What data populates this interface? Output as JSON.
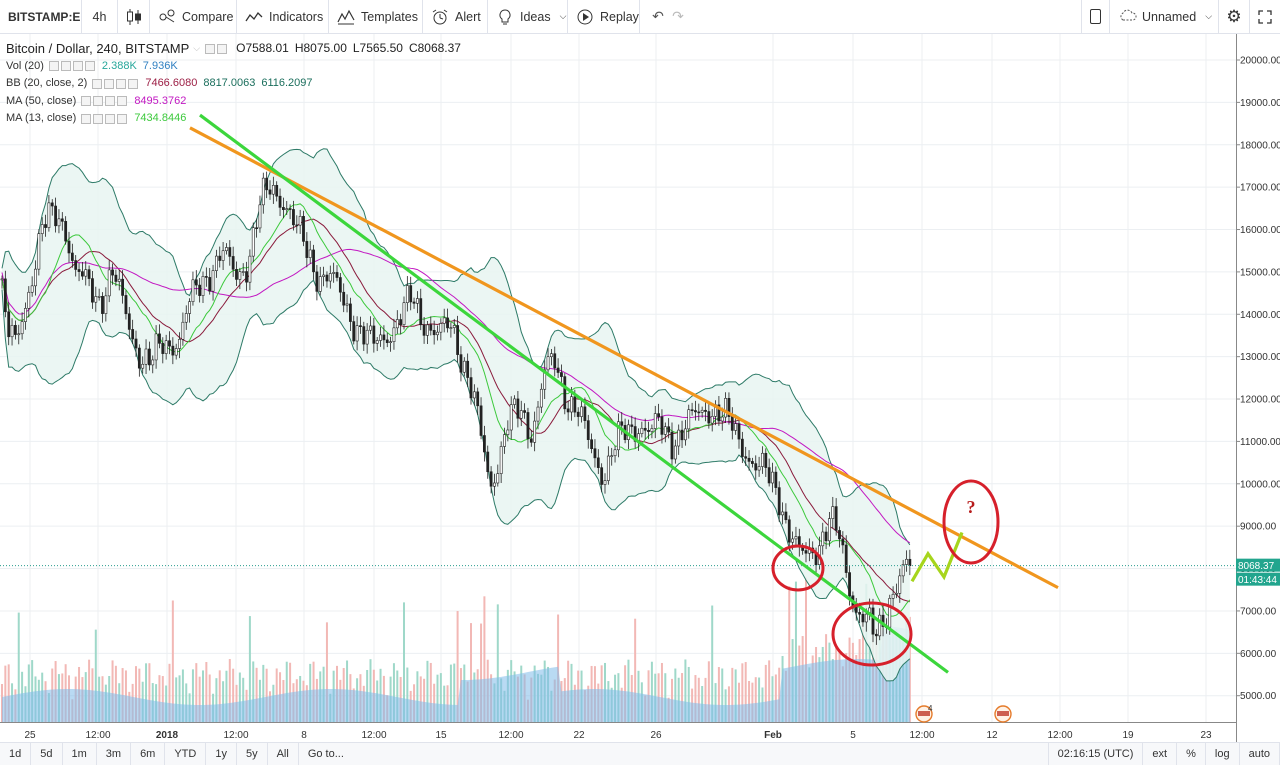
{
  "toolbar": {
    "symbol": "BITSTAMP:E",
    "interval": "4h",
    "compare": "Compare",
    "indicators": "Indicators",
    "templates": "Templates",
    "alert": "Alert",
    "ideas": "Ideas",
    "replay": "Replay",
    "layout_name": "Unnamed"
  },
  "legend": {
    "title": "Bitcoin / Dollar, 240, BITSTAMP",
    "open": "O7588.01",
    "high": "H8075.00",
    "low": "L7565.50",
    "close": "C8068.37",
    "indicators": [
      {
        "label": "Vol (20)",
        "values": [
          "2.388K",
          "7.936K"
        ],
        "colors": [
          "#26a69a",
          "#2f7fc1"
        ]
      },
      {
        "label": "BB (20, close, 2)",
        "values": [
          "7466.6080",
          "8817.0063",
          "6116.2097"
        ],
        "colors": [
          "#9c1f45",
          "#1a6e5c",
          "#1a6e5c"
        ]
      },
      {
        "label": "MA (50, close)",
        "values": [
          "8495.3762"
        ],
        "colors": [
          "#c218c2"
        ]
      },
      {
        "label": "MA (13, close)",
        "values": [
          "7434.8446"
        ],
        "colors": [
          "#3cc93c"
        ]
      }
    ]
  },
  "price_axis": {
    "labels": [
      "20000.00",
      "19000.00",
      "18000.00",
      "17000.00",
      "16000.00",
      "15000.00",
      "14000.00",
      "13000.00",
      "12000.00",
      "11000.00",
      "10000.00",
      "9000.00",
      "8000.00",
      "7000.00",
      "6000.00",
      "5000.00"
    ],
    "last_price": "8068.37",
    "countdown": "01:43:44"
  },
  "time_axis": {
    "labels": [
      "25",
      "12:00",
      "2018",
      "12:00",
      "8",
      "12:00",
      "15",
      "12:00",
      "22",
      "26",
      "Feb",
      "5",
      "12:00",
      "12",
      "12:00",
      "19",
      "23"
    ],
    "clock": "02:16:15 (UTC)"
  },
  "annotations": {
    "question": "?",
    "event_badge": "4"
  },
  "bottombar": {
    "ranges": [
      "1d",
      "5d",
      "1m",
      "3m",
      "6m",
      "YTD",
      "1y",
      "5y",
      "All"
    ],
    "goto": "Go to...",
    "toggles": [
      "ext",
      "%",
      "log",
      "auto"
    ]
  },
  "chart_data": {
    "type": "candlestick",
    "symbol": "Bitcoin / Dollar, 240, BITSTAMP",
    "ylim": [
      4600,
      20600
    ],
    "x_ticks": [
      "25",
      "12:00",
      "2018",
      "12:00",
      "8",
      "12:00",
      "15",
      "12:00",
      "22",
      "26",
      "Feb",
      "5",
      "12:00",
      "12",
      "12:00",
      "19",
      "23"
    ],
    "path": [
      [
        0,
        15000
      ],
      [
        8,
        13500
      ],
      [
        16,
        13200
      ],
      [
        30,
        14800
      ],
      [
        42,
        16000
      ],
      [
        55,
        16300
      ],
      [
        65,
        16200
      ],
      [
        75,
        15000
      ],
      [
        88,
        14600
      ],
      [
        100,
        14400
      ],
      [
        112,
        15000
      ],
      [
        125,
        14000
      ],
      [
        138,
        13200
      ],
      [
        150,
        12800
      ],
      [
        165,
        13300
      ],
      [
        180,
        13500
      ],
      [
        190,
        14200
      ],
      [
        200,
        14700
      ],
      [
        210,
        15100
      ],
      [
        222,
        15400
      ],
      [
        235,
        14900
      ],
      [
        248,
        15300
      ],
      [
        258,
        16300
      ],
      [
        265,
        16800
      ],
      [
        275,
        17000
      ],
      [
        285,
        16700
      ],
      [
        295,
        16000
      ],
      [
        305,
        15600
      ],
      [
        318,
        15000
      ],
      [
        330,
        14800
      ],
      [
        345,
        14300
      ],
      [
        360,
        13600
      ],
      [
        372,
        13200
      ],
      [
        385,
        13600
      ],
      [
        400,
        13800
      ],
      [
        412,
        14400
      ],
      [
        425,
        13900
      ],
      [
        438,
        13400
      ],
      [
        452,
        13800
      ],
      [
        460,
        13200
      ],
      [
        470,
        12300
      ],
      [
        480,
        11200
      ],
      [
        490,
        10000
      ],
      [
        498,
        10600
      ],
      [
        508,
        11400
      ],
      [
        520,
        11700
      ],
      [
        532,
        11300
      ],
      [
        545,
        12600
      ],
      [
        555,
        12800
      ],
      [
        565,
        12200
      ],
      [
        578,
        11700
      ],
      [
        590,
        10800
      ],
      [
        603,
        10300
      ],
      [
        615,
        10900
      ],
      [
        628,
        11200
      ],
      [
        640,
        11500
      ],
      [
        650,
        11200
      ],
      [
        660,
        11300
      ],
      [
        672,
        11100
      ],
      [
        685,
        11300
      ],
      [
        698,
        11600
      ],
      [
        710,
        11900
      ],
      [
        722,
        11600
      ],
      [
        735,
        11200
      ],
      [
        745,
        10900
      ],
      [
        755,
        10400
      ],
      [
        765,
        10200
      ],
      [
        778,
        9900
      ],
      [
        790,
        8800
      ],
      [
        800,
        8200
      ],
      [
        810,
        8400
      ],
      [
        820,
        8700
      ],
      [
        830,
        9100
      ],
      [
        840,
        8600
      ],
      [
        850,
        7600
      ],
      [
        858,
        7000
      ],
      [
        866,
        6800
      ],
      [
        874,
        6300
      ],
      [
        882,
        6700
      ],
      [
        890,
        7400
      ],
      [
        898,
        7700
      ],
      [
        906,
        7900
      ],
      [
        910,
        8068
      ]
    ],
    "last_close": 8068.37,
    "trendlines": [
      {
        "color": "#f0961e",
        "from": [
          190,
          18400
        ],
        "to": [
          1058,
          7550
        ]
      },
      {
        "color": "#3cd63c",
        "from": [
          200,
          18700
        ],
        "to": [
          948,
          5550
        ]
      }
    ],
    "forecast": {
      "color": "#a6d51c",
      "points": [
        [
          912,
          7700
        ],
        [
          928,
          8350
        ],
        [
          944,
          7800
        ],
        [
          962,
          8850
        ]
      ]
    }
  }
}
